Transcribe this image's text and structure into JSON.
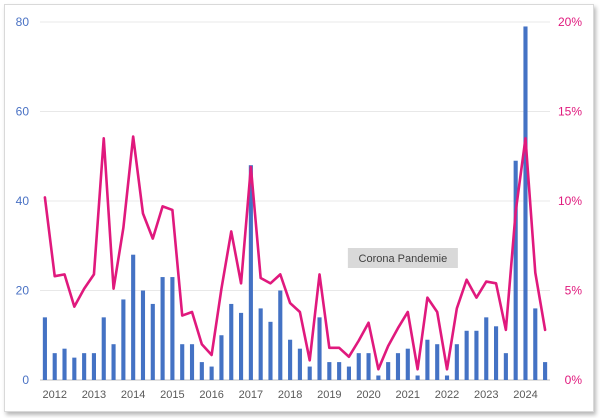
{
  "chart_data": {
    "type": "bar",
    "categories": [
      "2012-Q1",
      "2012-Q2",
      "2012-Q3",
      "2012-Q4",
      "2013-Q1",
      "2013-Q2",
      "2013-Q3",
      "2013-Q4",
      "2014-Q1",
      "2014-Q2",
      "2014-Q3",
      "2014-Q4",
      "2015-Q1",
      "2015-Q2",
      "2015-Q3",
      "2015-Q4",
      "2016-Q1",
      "2016-Q2",
      "2016-Q3",
      "2016-Q4",
      "2017-Q1",
      "2017-Q2",
      "2017-Q3",
      "2017-Q4",
      "2018-Q1",
      "2018-Q2",
      "2018-Q3",
      "2018-Q4",
      "2019-Q1",
      "2019-Q2",
      "2019-Q3",
      "2019-Q4",
      "2020-Q1",
      "2020-Q2",
      "2020-Q3",
      "2020-Q4",
      "2021-Q1",
      "2021-Q2",
      "2021-Q3",
      "2021-Q4",
      "2022-Q1",
      "2022-Q2",
      "2022-Q3",
      "2022-Q4",
      "2023-Q1",
      "2023-Q2",
      "2023-Q3",
      "2023-Q4",
      "2024-Q1",
      "2024-Q2",
      "2024-Q3",
      "2024-Q4"
    ],
    "series": [
      {
        "axis": "left",
        "values": [
          14,
          6,
          7,
          5,
          6,
          6,
          14,
          8,
          18,
          28,
          20,
          17,
          23,
          23,
          8,
          8,
          4,
          3,
          10,
          17,
          15,
          48,
          16,
          13,
          20,
          9,
          7,
          3,
          14,
          4,
          4,
          3,
          6,
          6,
          1,
          4,
          6,
          7,
          1,
          9,
          8,
          1,
          8,
          11,
          11,
          14,
          12,
          6,
          49,
          79,
          16,
          4
        ],
        "color": "#4472c4"
      },
      {
        "axis": "right",
        "type": "line",
        "values": [
          10.2,
          5.8,
          5.9,
          4.1,
          5.1,
          5.9,
          13.5,
          5.1,
          8.5,
          13.6,
          9.3,
          7.9,
          9.7,
          9.5,
          3.6,
          3.8,
          2.0,
          1.4,
          5.1,
          8.3,
          5.4,
          11.9,
          5.7,
          5.4,
          5.9,
          4.3,
          3.8,
          1.1,
          5.9,
          1.8,
          1.8,
          1.3,
          2.2,
          3.2,
          0.6,
          1.9,
          2.9,
          3.8,
          0.6,
          4.6,
          3.8,
          0.6,
          4.0,
          5.6,
          4.6,
          5.5,
          5.4,
          2.8,
          9.4,
          13.5,
          6.0,
          2.8
        ],
        "color": "#e0197d"
      }
    ],
    "x_tick_labels": [
      "2012",
      "2013",
      "2014",
      "2015",
      "2016",
      "2017",
      "2018",
      "2019",
      "2020",
      "2021",
      "2022",
      "2023",
      "2024"
    ],
    "y_left": {
      "ylim": [
        0,
        80
      ],
      "ticks": [
        "0",
        "20",
        "40",
        "60",
        "80"
      ],
      "color": "#4a72c4"
    },
    "y_right": {
      "ylim": [
        0,
        20
      ],
      "ticks": [
        "0%",
        "5%",
        "10%",
        "15%",
        "20%"
      ],
      "color": "#e0197d"
    },
    "annotation": {
      "text": "Corona Pandemie",
      "year": 2021
    },
    "grid": true,
    "legend": "none"
  }
}
